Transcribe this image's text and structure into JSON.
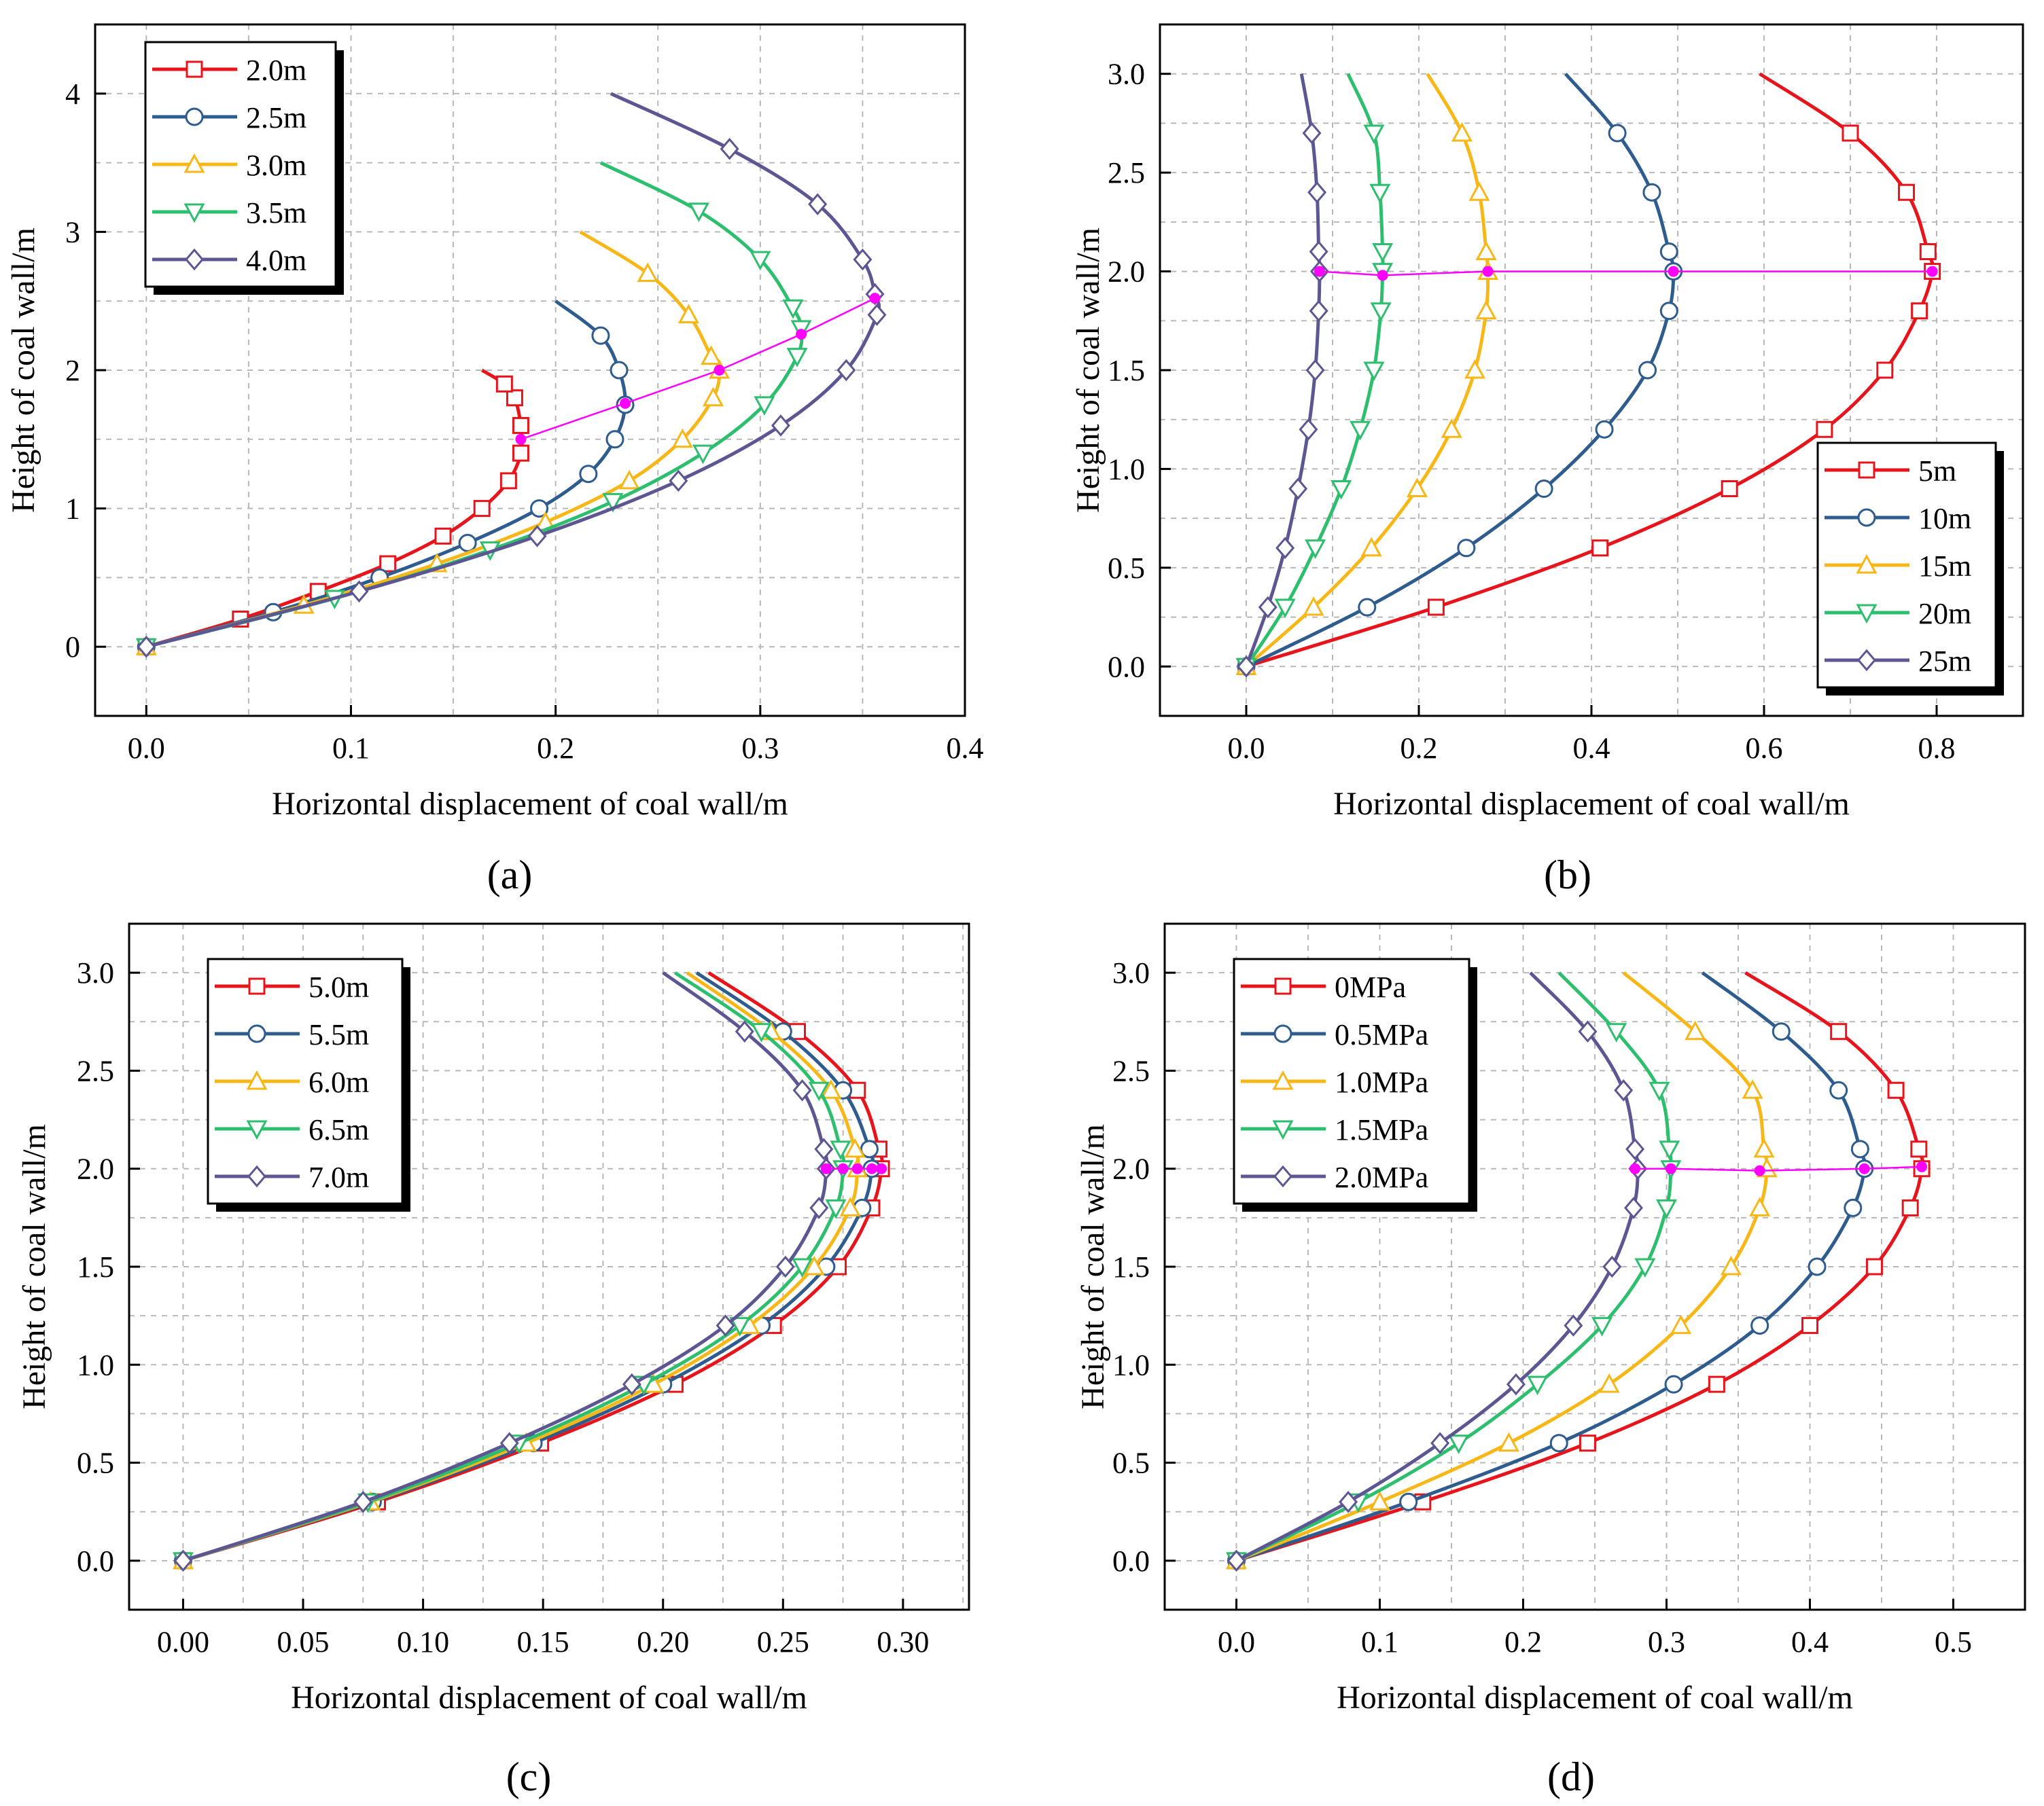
{
  "colors": {
    "series": [
      "#e8141b",
      "#2e5c8f",
      "#f7b717",
      "#2dbf6e",
      "#5c5793"
    ],
    "peak": "#ff00ff"
  },
  "chart_data": [
    {
      "type": "line",
      "label": "(a)",
      "xlabel": "Horizontal displacement of coal wall/m",
      "ylabel": "Height of coal wall/m",
      "xlim": [
        -0.025,
        0.4
      ],
      "ylim": [
        -0.5,
        4.5
      ],
      "xticks": [
        "0.0",
        "0.1",
        "0.2",
        "0.3",
        "0.4"
      ],
      "xtick_values": [
        0,
        0.1,
        0.2,
        0.3,
        0.4
      ],
      "yticks": [
        "0",
        "1",
        "2",
        "3",
        "4"
      ],
      "ytick_values": [
        0,
        1,
        2,
        3,
        4
      ],
      "legend_position": "top-left",
      "series": [
        {
          "name": "2.0m",
          "marker": "square",
          "x": [
            0,
            0.046,
            0.084,
            0.118,
            0.145,
            0.164,
            0.177,
            0.183,
            0.183,
            0.18,
            0.175,
            0.164
          ],
          "y": [
            0,
            0.2,
            0.4,
            0.6,
            0.8,
            1.0,
            1.2,
            1.4,
            1.6,
            1.8,
            1.9,
            2.0
          ]
        },
        {
          "name": "2.5m",
          "marker": "circle",
          "x": [
            0,
            0.062,
            0.114,
            0.157,
            0.192,
            0.216,
            0.229,
            0.234,
            0.231,
            0.222,
            0.2
          ],
          "y": [
            0,
            0.25,
            0.5,
            0.75,
            1.0,
            1.25,
            1.5,
            1.75,
            2.0,
            2.25,
            2.5
          ]
        },
        {
          "name": "3.0m",
          "marker": "triangle-up",
          "x": [
            0,
            0.077,
            0.142,
            0.195,
            0.236,
            0.262,
            0.277,
            0.28,
            0.276,
            0.265,
            0.245,
            0.212
          ],
          "y": [
            0,
            0.3,
            0.6,
            0.9,
            1.2,
            1.5,
            1.8,
            2.0,
            2.1,
            2.4,
            2.7,
            3.0
          ]
        },
        {
          "name": "3.5m",
          "marker": "triangle-down",
          "x": [
            0,
            0.092,
            0.168,
            0.228,
            0.272,
            0.302,
            0.318,
            0.32,
            0.316,
            0.3,
            0.27,
            0.222
          ],
          "y": [
            0,
            0.35,
            0.7,
            1.05,
            1.4,
            1.75,
            2.1,
            2.3,
            2.45,
            2.8,
            3.15,
            3.5
          ]
        },
        {
          "name": "4.0m",
          "marker": "diamond",
          "x": [
            0,
            0.104,
            0.191,
            0.26,
            0.31,
            0.342,
            0.357,
            0.356,
            0.35,
            0.328,
            0.285,
            0.227
          ],
          "y": [
            0,
            0.4,
            0.8,
            1.2,
            1.6,
            2.0,
            2.4,
            2.55,
            2.8,
            3.2,
            3.6,
            4.0
          ]
        }
      ],
      "peaks": {
        "x": [
          0.183,
          0.234,
          0.28,
          0.32,
          0.356
        ],
        "y": [
          1.5,
          1.76,
          2.0,
          2.26,
          2.52
        ]
      }
    },
    {
      "type": "line",
      "label": "(b)",
      "xlabel": "Horizontal displacement of coal wall/m",
      "ylabel": "Height of coal wall/m",
      "xlim": [
        -0.1,
        0.9
      ],
      "ylim": [
        -0.25,
        3.25
      ],
      "xticks": [
        "0.0",
        "0.2",
        "0.4",
        "0.6",
        "0.8"
      ],
      "xtick_values": [
        0,
        0.2,
        0.4,
        0.6,
        0.8
      ],
      "yticks": [
        "0.0",
        "0.5",
        "1.0",
        "1.5",
        "2.0",
        "2.5",
        "3.0"
      ],
      "ytick_values": [
        0,
        0.5,
        1.0,
        1.5,
        2.0,
        2.5,
        3.0
      ],
      "legend_position": "bottom-right",
      "series": [
        {
          "name": "5m",
          "marker": "square",
          "x": [
            0,
            0.22,
            0.41,
            0.56,
            0.67,
            0.74,
            0.78,
            0.795,
            0.79,
            0.765,
            0.7,
            0.595
          ],
          "y": [
            0,
            0.3,
            0.6,
            0.9,
            1.2,
            1.5,
            1.8,
            2.0,
            2.1,
            2.4,
            2.7,
            3.0
          ]
        },
        {
          "name": "10m",
          "marker": "circle",
          "x": [
            0,
            0.14,
            0.255,
            0.345,
            0.415,
            0.465,
            0.49,
            0.495,
            0.49,
            0.47,
            0.43,
            0.37
          ],
          "y": [
            0,
            0.3,
            0.6,
            0.9,
            1.2,
            1.5,
            1.8,
            2.0,
            2.1,
            2.4,
            2.7,
            3.0
          ]
        },
        {
          "name": "15m",
          "marker": "triangle-up",
          "x": [
            0,
            0.078,
            0.145,
            0.198,
            0.238,
            0.265,
            0.278,
            0.28,
            0.278,
            0.27,
            0.25,
            0.21
          ],
          "y": [
            0,
            0.3,
            0.6,
            0.9,
            1.2,
            1.5,
            1.8,
            2.0,
            2.1,
            2.4,
            2.7,
            3.0
          ]
        },
        {
          "name": "20m",
          "marker": "triangle-down",
          "x": [
            0,
            0.045,
            0.08,
            0.11,
            0.132,
            0.148,
            0.156,
            0.158,
            0.158,
            0.155,
            0.148,
            0.118
          ],
          "y": [
            0,
            0.3,
            0.6,
            0.9,
            1.2,
            1.5,
            1.8,
            2.0,
            2.1,
            2.4,
            2.7,
            3.0
          ]
        },
        {
          "name": "25m",
          "marker": "diamond",
          "x": [
            0,
            0.025,
            0.045,
            0.06,
            0.072,
            0.08,
            0.084,
            0.085,
            0.084,
            0.082,
            0.076,
            0.064
          ],
          "y": [
            0,
            0.3,
            0.6,
            0.9,
            1.2,
            1.5,
            1.8,
            2.0,
            2.1,
            2.4,
            2.7,
            3.0
          ]
        }
      ],
      "peaks": {
        "x": [
          0.085,
          0.158,
          0.28,
          0.495,
          0.795
        ],
        "y": [
          2.0,
          1.98,
          2.0,
          2.0,
          2.0
        ]
      }
    },
    {
      "type": "line",
      "label": "(c)",
      "xlabel": "Horizontal displacement of coal wall/m",
      "ylabel": "Height of coal wall/m",
      "xlim": [
        -0.0225,
        0.3275
      ],
      "ylim": [
        -0.25,
        3.25
      ],
      "xticks": [
        "0.00",
        "0.05",
        "0.10",
        "0.15",
        "0.20",
        "0.25",
        "0.30"
      ],
      "xtick_values": [
        0,
        0.05,
        0.1,
        0.15,
        0.2,
        0.25,
        0.3
      ],
      "yticks": [
        "0.0",
        "0.5",
        "1.0",
        "1.5",
        "2.0",
        "2.5",
        "3.0"
      ],
      "ytick_values": [
        0,
        0.5,
        1.0,
        1.5,
        2.0,
        2.5,
        3.0
      ],
      "legend_position": "top-left",
      "series": [
        {
          "name": "5.0m",
          "marker": "square",
          "x": [
            0,
            0.081,
            0.149,
            0.205,
            0.246,
            0.273,
            0.287,
            0.291,
            0.29,
            0.281,
            0.256,
            0.219
          ],
          "y": [
            0,
            0.3,
            0.6,
            0.9,
            1.2,
            1.5,
            1.8,
            2.0,
            2.1,
            2.4,
            2.7,
            3.0
          ]
        },
        {
          "name": "5.5m",
          "marker": "circle",
          "x": [
            0,
            0.079,
            0.146,
            0.2,
            0.241,
            0.268,
            0.283,
            0.287,
            0.286,
            0.275,
            0.25,
            0.214
          ],
          "y": [
            0,
            0.3,
            0.6,
            0.9,
            1.2,
            1.5,
            1.8,
            2.0,
            2.1,
            2.4,
            2.7,
            3.0
          ]
        },
        {
          "name": "6.0m",
          "marker": "triangle-up",
          "x": [
            0,
            0.078,
            0.143,
            0.196,
            0.236,
            0.263,
            0.278,
            0.281,
            0.28,
            0.27,
            0.245,
            0.21
          ],
          "y": [
            0,
            0.3,
            0.6,
            0.9,
            1.2,
            1.5,
            1.8,
            2.0,
            2.1,
            2.4,
            2.7,
            3.0
          ]
        },
        {
          "name": "6.5m",
          "marker": "triangle-down",
          "x": [
            0,
            0.077,
            0.14,
            0.192,
            0.232,
            0.258,
            0.272,
            0.275,
            0.274,
            0.265,
            0.241,
            0.205
          ],
          "y": [
            0,
            0.3,
            0.6,
            0.9,
            1.2,
            1.5,
            1.8,
            2.0,
            2.1,
            2.4,
            2.7,
            3.0
          ]
        },
        {
          "name": "7.0m",
          "marker": "diamond",
          "x": [
            0,
            0.075,
            0.136,
            0.187,
            0.226,
            0.251,
            0.265,
            0.268,
            0.267,
            0.258,
            0.234,
            0.2
          ],
          "y": [
            0,
            0.3,
            0.6,
            0.9,
            1.2,
            1.5,
            1.8,
            2.0,
            2.1,
            2.4,
            2.7,
            3.0
          ]
        }
      ],
      "peaks": {
        "x": [
          0.268,
          0.275,
          0.281,
          0.287,
          0.291
        ],
        "y": [
          2.0,
          2.0,
          2.0,
          2.0,
          2.0
        ]
      }
    },
    {
      "type": "line",
      "label": "(d)",
      "xlabel": "Horizontal displacement of coal wall/m",
      "ylabel": "Height of coal wall/m",
      "xlim": [
        -0.05,
        0.55
      ],
      "ylim": [
        -0.25,
        3.25
      ],
      "xticks": [
        "0.0",
        "0.1",
        "0.2",
        "0.3",
        "0.4",
        "0.5"
      ],
      "xtick_values": [
        0,
        0.1,
        0.2,
        0.3,
        0.4,
        0.5
      ],
      "yticks": [
        "0.0",
        "0.5",
        "1.0",
        "1.5",
        "2.0",
        "2.5",
        "3.0"
      ],
      "ytick_values": [
        0,
        0.5,
        1.0,
        1.5,
        2.0,
        2.5,
        3.0
      ],
      "legend_position": "top-left",
      "series": [
        {
          "name": "0MPa",
          "marker": "square",
          "x": [
            0,
            0.13,
            0.245,
            0.335,
            0.4,
            0.445,
            0.47,
            0.478,
            0.476,
            0.46,
            0.42,
            0.355
          ],
          "y": [
            0,
            0.3,
            0.6,
            0.9,
            1.2,
            1.5,
            1.8,
            2.0,
            2.1,
            2.4,
            2.7,
            3.0
          ]
        },
        {
          "name": "0.5MPa",
          "marker": "circle",
          "x": [
            0,
            0.12,
            0.225,
            0.305,
            0.365,
            0.405,
            0.43,
            0.438,
            0.435,
            0.42,
            0.38,
            0.325
          ],
          "y": [
            0,
            0.3,
            0.6,
            0.9,
            1.2,
            1.5,
            1.8,
            2.0,
            2.1,
            2.4,
            2.7,
            3.0
          ]
        },
        {
          "name": "1.0MPa",
          "marker": "triangle-up",
          "x": [
            0,
            0.1,
            0.19,
            0.26,
            0.31,
            0.345,
            0.365,
            0.37,
            0.368,
            0.36,
            0.32,
            0.27
          ],
          "y": [
            0,
            0.3,
            0.6,
            0.9,
            1.2,
            1.5,
            1.8,
            2.0,
            2.1,
            2.4,
            2.7,
            3.0
          ]
        },
        {
          "name": "1.5MPa",
          "marker": "triangle-down",
          "x": [
            0,
            0.085,
            0.155,
            0.21,
            0.255,
            0.285,
            0.3,
            0.303,
            0.302,
            0.295,
            0.265,
            0.225
          ],
          "y": [
            0,
            0.3,
            0.6,
            0.9,
            1.2,
            1.5,
            1.8,
            2.0,
            2.1,
            2.4,
            2.7,
            3.0
          ]
        },
        {
          "name": "2.0MPa",
          "marker": "diamond",
          "x": [
            0,
            0.078,
            0.142,
            0.195,
            0.235,
            0.262,
            0.277,
            0.28,
            0.278,
            0.27,
            0.245,
            0.205
          ],
          "y": [
            0,
            0.3,
            0.6,
            0.9,
            1.2,
            1.5,
            1.8,
            2.0,
            2.1,
            2.4,
            2.7,
            3.0
          ]
        }
      ],
      "peaks": {
        "x": [
          0.278,
          0.303,
          0.365,
          0.438,
          0.478
        ],
        "y": [
          2.0,
          2.0,
          1.99,
          2.0,
          2.01
        ]
      }
    }
  ]
}
